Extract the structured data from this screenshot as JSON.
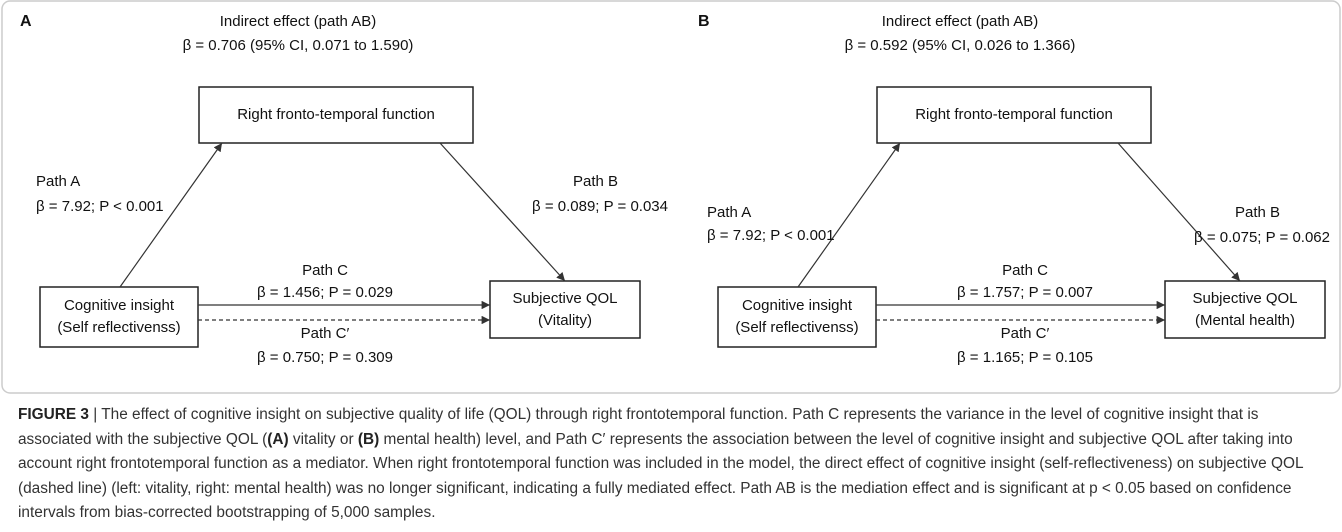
{
  "panels": [
    {
      "label": "A",
      "indirect": {
        "title": "Indirect effect (path AB)",
        "stat": "β = 0.706 (95% CI, 0.071 to 1.590)"
      },
      "mediator": "Right fronto-temporal function",
      "predictor": [
        "Cognitive insight",
        "(Self reflectivenss)"
      ],
      "outcome": [
        "Subjective QOL",
        "(Vitality)"
      ],
      "path_a": {
        "name": "Path A",
        "stat": "β = 7.92; P < 0.001"
      },
      "path_b": {
        "name": "Path B",
        "stat": "β = 0.089; P = 0.034"
      },
      "path_c": {
        "name": "Path C",
        "stat": "β = 1.456; P = 0.029"
      },
      "path_c_prime": {
        "name": "Path C′",
        "stat": "β = 0.750; P = 0.309"
      }
    },
    {
      "label": "B",
      "indirect": {
        "title": "Indirect effect (path AB)",
        "stat": "β = 0.592 (95% CI, 0.026 to 1.366)"
      },
      "mediator": "Right fronto-temporal function",
      "predictor": [
        "Cognitive insight",
        "(Self reflectivenss)"
      ],
      "outcome": [
        "Subjective QOL",
        "(Mental health)"
      ],
      "path_a": {
        "name": "Path A",
        "stat": "β = 7.92; P < 0.001"
      },
      "path_b": {
        "name": "Path B",
        "stat": "β = 0.075; P = 0.062"
      },
      "path_c": {
        "name": "Path C",
        "stat": "β = 1.757; P = 0.007"
      },
      "path_c_prime": {
        "name": "Path C′",
        "stat": "β = 1.165; P = 0.105"
      }
    }
  ],
  "caption": [
    "FIGURE 3",
    " | The effect of cognitive insight on subjective quality of life (QOL) through right frontotemporal function. Path C represents the variance in the level of cognitive insight that is associated with the subjective QOL (",
    "(A)",
    " vitality or ",
    "(B)",
    " mental health) level, and Path C′ represents the association between the level of cognitive insight and subjective QOL after taking into account right frontotemporal function as a mediator. When right frontotemporal function was included in the model, the direct effect of cognitive insight (self-reflectiveness) on subjective QOL (dashed line) (left: vitality, right: mental health) was no longer significant, indicating a fully mediated effect. Path AB is the mediation effect and is significant at p < 0.05 based on confidence intervals from bias-corrected bootstrapping of 5,000 samples."
  ]
}
